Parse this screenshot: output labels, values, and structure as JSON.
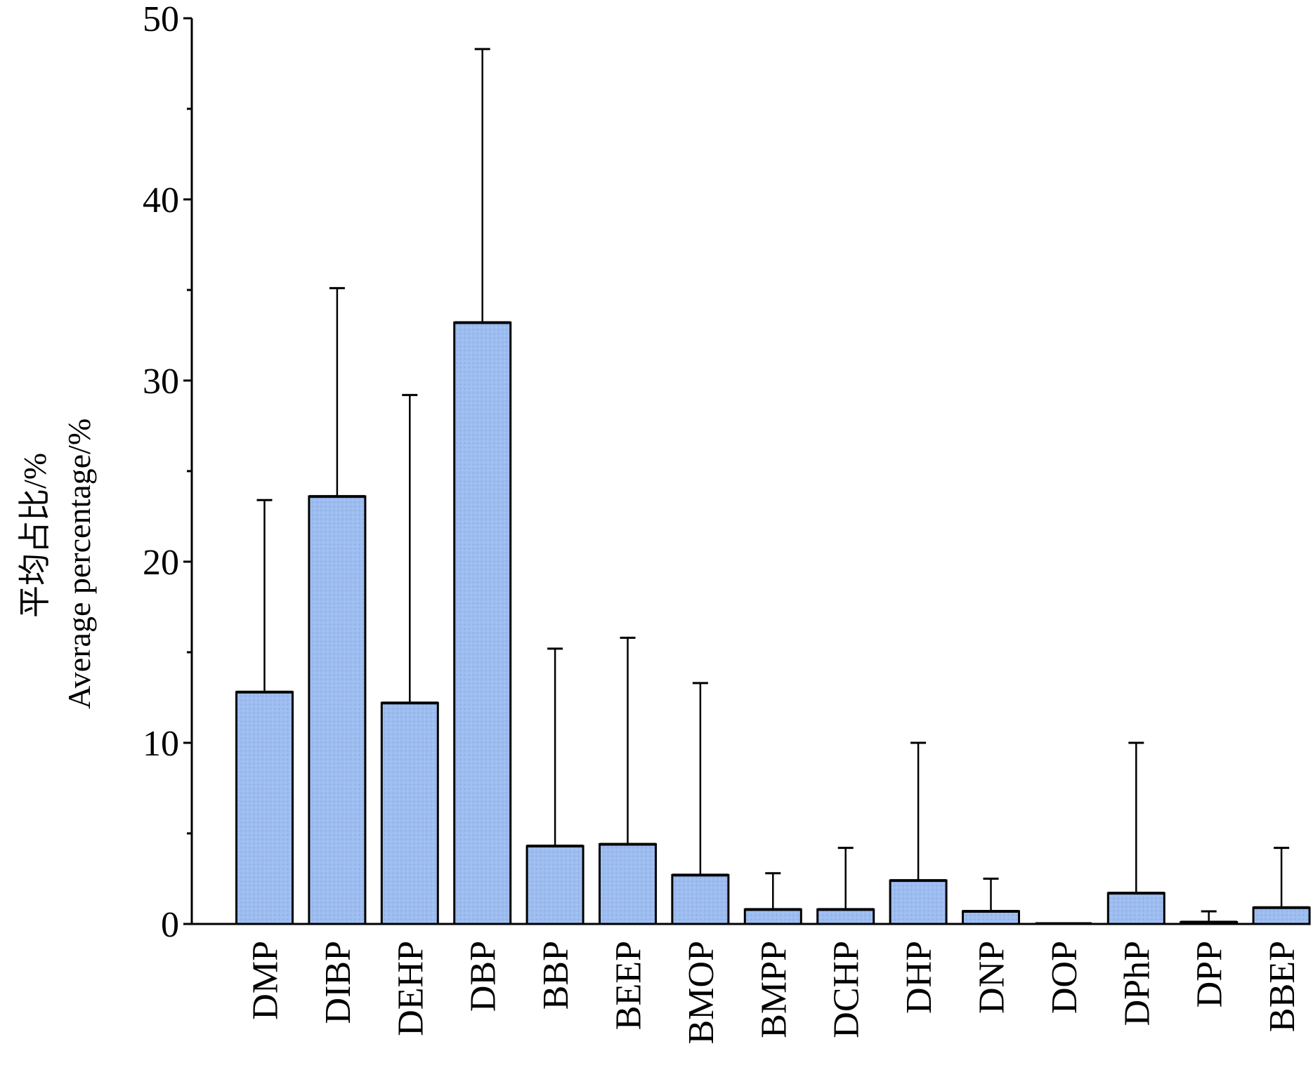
{
  "chart_data": {
    "type": "bar",
    "title": "",
    "xlabel": "",
    "ylabel_cn": "平均占比/%",
    "ylabel_en": "Average percentage/%",
    "ylim": [
      0,
      50
    ],
    "yticks": [
      0,
      10,
      20,
      30,
      40,
      50
    ],
    "grid": false,
    "categories": [
      "DMP",
      "DIBP",
      "DEHP",
      "DBP",
      "BBP",
      "BEEP",
      "BMOP",
      "BMPP",
      "DCHP",
      "DHP",
      "DNP",
      "DOP",
      "DPhP",
      "DPP",
      "BBEP"
    ],
    "values": [
      12.8,
      23.6,
      12.2,
      33.2,
      4.3,
      4.4,
      2.7,
      0.8,
      0.8,
      2.4,
      0.7,
      0.0,
      1.7,
      0.1,
      0.9
    ],
    "error_upper": [
      23.4,
      35.1,
      29.2,
      48.3,
      15.2,
      15.8,
      13.3,
      2.8,
      4.2,
      10.0,
      2.5,
      0.0,
      10.0,
      0.7,
      4.2
    ],
    "bar_color": "#9dbdf0",
    "bar_edge_color": "#000000"
  }
}
